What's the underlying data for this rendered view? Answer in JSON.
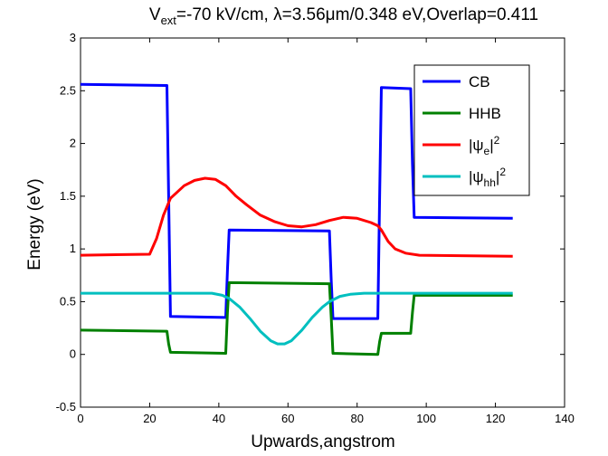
{
  "chart_data": {
    "type": "line",
    "title_parts": {
      "v": "V",
      "ext": "ext",
      "rest": "=-70 kV/cm, λ=3.56μm/0.348 eV,Overlap=0.411"
    },
    "xlabel": "Upwards,angstrom",
    "ylabel": "Energy (eV)",
    "xlim": [
      0,
      140
    ],
    "ylim": [
      -0.5,
      3
    ],
    "xticks": [
      "0",
      "20",
      "40",
      "60",
      "80",
      "100",
      "120",
      "140"
    ],
    "yticks": [
      "-0.5",
      "0",
      "0.5",
      "1",
      "1.5",
      "2",
      "2.5",
      "3"
    ],
    "grid": false,
    "legend_position": "top-right",
    "series": [
      {
        "name": "CB",
        "color": "#0000ff",
        "points": [
          [
            0,
            2.56
          ],
          [
            25,
            2.55
          ],
          [
            25.5,
            1.5
          ],
          [
            26,
            0.36
          ],
          [
            42,
            0.35
          ],
          [
            42.5,
            0.8
          ],
          [
            43,
            1.18
          ],
          [
            72,
            1.17
          ],
          [
            72.5,
            0.7
          ],
          [
            73,
            0.34
          ],
          [
            86,
            0.34
          ],
          [
            86.5,
            1.5
          ],
          [
            87,
            2.53
          ],
          [
            95.5,
            2.52
          ],
          [
            96,
            1.8
          ],
          [
            96.5,
            1.3
          ],
          [
            125,
            1.29
          ]
        ]
      },
      {
        "name": "HHB",
        "color": "#008000",
        "points": [
          [
            0,
            0.23
          ],
          [
            25,
            0.22
          ],
          [
            25.5,
            0.1
          ],
          [
            26,
            0.02
          ],
          [
            42,
            0.01
          ],
          [
            42.5,
            0.4
          ],
          [
            43,
            0.68
          ],
          [
            72,
            0.67
          ],
          [
            72.5,
            0.35
          ],
          [
            73,
            0.01
          ],
          [
            86,
            0.0
          ],
          [
            86.5,
            0.12
          ],
          [
            87,
            0.2
          ],
          [
            95.5,
            0.2
          ],
          [
            96,
            0.4
          ],
          [
            96.5,
            0.56
          ],
          [
            125,
            0.56
          ]
        ]
      },
      {
        "name": "|ψe|²",
        "color": "#ff0000",
        "points": [
          [
            0,
            0.94
          ],
          [
            20,
            0.95
          ],
          [
            22,
            1.1
          ],
          [
            24,
            1.32
          ],
          [
            26,
            1.48
          ],
          [
            28,
            1.54
          ],
          [
            30,
            1.6
          ],
          [
            33,
            1.65
          ],
          [
            36,
            1.67
          ],
          [
            39,
            1.66
          ],
          [
            42,
            1.6
          ],
          [
            45,
            1.5
          ],
          [
            48,
            1.42
          ],
          [
            52,
            1.32
          ],
          [
            56,
            1.26
          ],
          [
            60,
            1.22
          ],
          [
            64,
            1.21
          ],
          [
            68,
            1.23
          ],
          [
            72,
            1.27
          ],
          [
            76,
            1.3
          ],
          [
            80,
            1.29
          ],
          [
            84,
            1.25
          ],
          [
            86,
            1.22
          ],
          [
            87,
            1.18
          ],
          [
            89,
            1.07
          ],
          [
            91,
            1.0
          ],
          [
            94,
            0.96
          ],
          [
            98,
            0.94
          ],
          [
            125,
            0.93
          ]
        ]
      },
      {
        "name": "|ψhh|²",
        "color": "#00bfbf",
        "points": [
          [
            0,
            0.58
          ],
          [
            38,
            0.58
          ],
          [
            41,
            0.56
          ],
          [
            43,
            0.53
          ],
          [
            46,
            0.45
          ],
          [
            49,
            0.34
          ],
          [
            52,
            0.22
          ],
          [
            55,
            0.13
          ],
          [
            57,
            0.1
          ],
          [
            59,
            0.1
          ],
          [
            61,
            0.13
          ],
          [
            64,
            0.23
          ],
          [
            67,
            0.35
          ],
          [
            70,
            0.45
          ],
          [
            72,
            0.5
          ],
          [
            75,
            0.55
          ],
          [
            78,
            0.57
          ],
          [
            82,
            0.58
          ],
          [
            125,
            0.58
          ]
        ]
      }
    ],
    "legend": [
      {
        "label_pre": "CB",
        "label_sub": "",
        "label_post": "",
        "label_sup": "",
        "color": "#0000ff"
      },
      {
        "label_pre": "HHB",
        "label_sub": "",
        "label_post": "",
        "label_sup": "",
        "color": "#008000"
      },
      {
        "label_pre": "|ψ",
        "label_sub": "e",
        "label_post": "|",
        "label_sup": "2",
        "color": "#ff0000"
      },
      {
        "label_pre": "|ψ",
        "label_sub": "hh",
        "label_post": "|",
        "label_sup": "2",
        "color": "#00bfbf"
      }
    ]
  }
}
